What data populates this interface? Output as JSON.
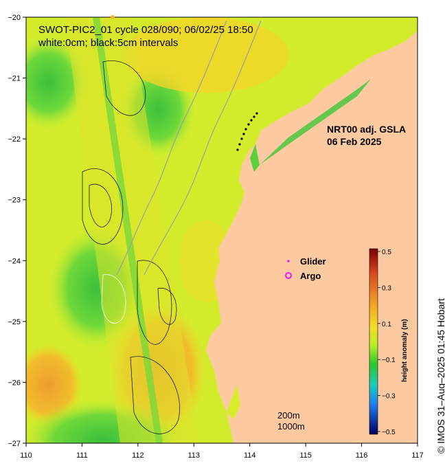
{
  "header": {
    "line1": "SWOT-PIC2_01 cycle 028/090; 06/02/25 18:50",
    "line2": "white:0cm; black:5cm intervals"
  },
  "product": {
    "name": "NRT00 adj. GSLA",
    "date": "06 Feb 2025"
  },
  "legend": {
    "glider": "Glider",
    "argo": "Argo",
    "glider_color": "#ff00ff",
    "argo_color": "#ff00ff"
  },
  "scale": {
    "contour_200": "200m",
    "contour_1000": "1000m"
  },
  "colorbar": {
    "label": "height anomaly (m)",
    "ticks": [
      "0.5",
      "0.3",
      "0.1",
      "−0.1",
      "−0.3",
      "−0.5"
    ]
  },
  "axes": {
    "x_ticks": [
      "110",
      "111",
      "112",
      "113",
      "114",
      "115",
      "116",
      "117"
    ],
    "y_ticks": [
      "−20",
      "−21",
      "−22",
      "−23",
      "−24",
      "−25",
      "−26",
      "−27"
    ]
  },
  "credit": "© IMOS 31–Aug–2025 01:45 Hobart",
  "colors": {
    "land": "#fcc9a0",
    "ocean_base": "#d6ee2a",
    "green": "#2ec82c",
    "orange": "#f0ad2c",
    "yellow": "#f4d624"
  }
}
